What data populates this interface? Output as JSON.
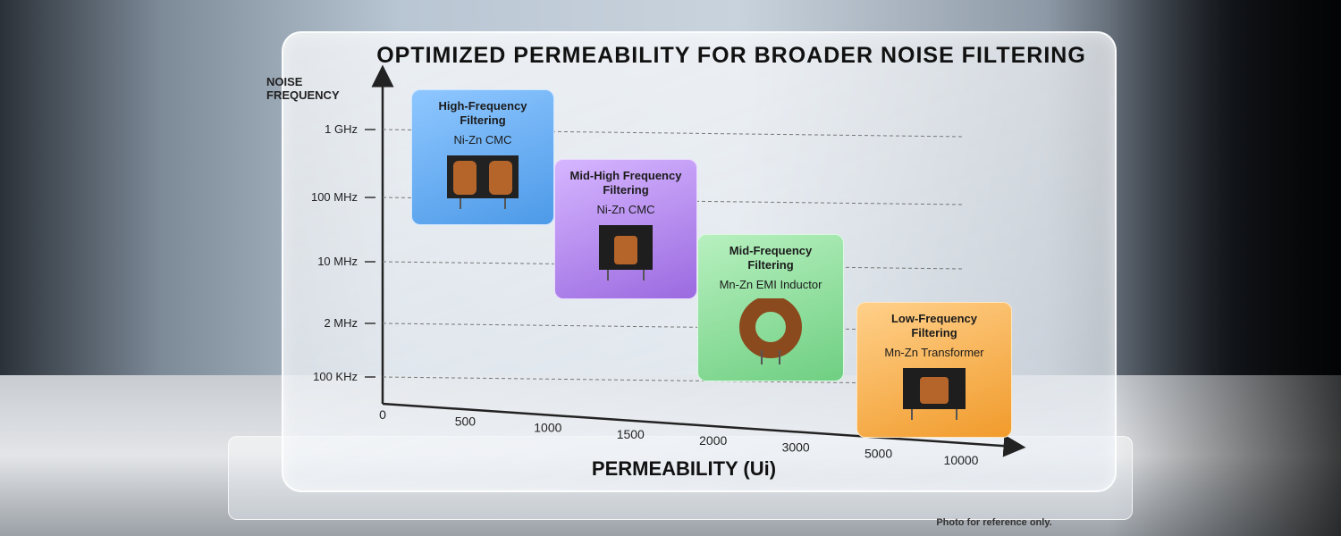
{
  "header": {
    "title": "OPTIMIZED PERMEABILITY FOR BROADER NOISE FILTERING"
  },
  "y_axis": {
    "label": "NOISE FREQUENCY",
    "ticks": [
      "1 GHz",
      "100 MHz",
      "10 MHz",
      "2 MHz",
      "100 KHz"
    ]
  },
  "x_axis": {
    "label": "PERMEABILITY (Ui)",
    "ticks": [
      0,
      500,
      1000,
      1500,
      2000,
      3000,
      5000,
      10000
    ]
  },
  "boxes": [
    {
      "title": "High-Frequency Filtering",
      "subtitle": "Ni-Zn CMC"
    },
    {
      "title": "Mid-High Frequency Filtering",
      "subtitle": "Ni-Zn CMC"
    },
    {
      "title": "Mid-Frequency Filtering",
      "subtitle": "Mn-Zn EMI Inductor"
    },
    {
      "title": "Low-Frequency Filtering",
      "subtitle": "Mn-Zn Transformer"
    }
  ],
  "footnote": "Photo for reference only."
}
